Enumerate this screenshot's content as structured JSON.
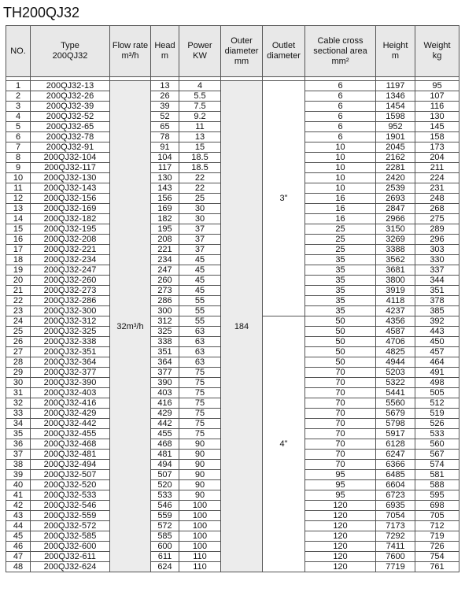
{
  "title": "TH200QJ32",
  "headers": {
    "no": "NO.",
    "type_line1": "Type",
    "type_line2": "200QJ32",
    "flow_line1": "Flow rate",
    "flow_line2": "m³/h",
    "head_line1": "Head",
    "head_line2": "m",
    "power_line1": "Power",
    "power_line2": "KW",
    "od_line1": "Outer",
    "od_line2": "diameter",
    "od_line3": "mm",
    "outlet_line1": "Outlet",
    "outlet_line2": "diameter",
    "cable_line1": "Cable cross",
    "cable_line2": "sectional area",
    "cable_line3": "mm²",
    "height_line1": "Height",
    "height_line2": "m",
    "weight_line1": "Weight",
    "weight_line2": "kg"
  },
  "merged": {
    "flow_rate": "32m³/h",
    "outer_diameter": "184",
    "outlet_3": "3\"",
    "outlet_4": "4\""
  },
  "rows": [
    {
      "no": "1",
      "type": "200QJ32-13",
      "head": "13",
      "power": "4",
      "cable": "6",
      "height": "1197",
      "weight": "95"
    },
    {
      "no": "2",
      "type": "200QJ32-26",
      "head": "26",
      "power": "5.5",
      "cable": "6",
      "height": "1346",
      "weight": "107"
    },
    {
      "no": "3",
      "type": "200QJ32-39",
      "head": "39",
      "power": "7.5",
      "cable": "6",
      "height": "1454",
      "weight": "116"
    },
    {
      "no": "4",
      "type": "200QJ32-52",
      "head": "52",
      "power": "9.2",
      "cable": "6",
      "height": "1598",
      "weight": "130"
    },
    {
      "no": "5",
      "type": "200QJ32-65",
      "head": "65",
      "power": "11",
      "cable": "6",
      "height": "952",
      "weight": "145"
    },
    {
      "no": "6",
      "type": "200QJ32-78",
      "head": "78",
      "power": "13",
      "cable": "6",
      "height": "1901",
      "weight": "158"
    },
    {
      "no": "7",
      "type": "200QJ32-91",
      "head": "91",
      "power": "15",
      "cable": "10",
      "height": "2045",
      "weight": "173"
    },
    {
      "no": "8",
      "type": "200QJ32-104",
      "head": "104",
      "power": "18.5",
      "cable": "10",
      "height": "2162",
      "weight": "204"
    },
    {
      "no": "9",
      "type": "200QJ32-117",
      "head": "117",
      "power": "18.5",
      "cable": "10",
      "height": "2281",
      "weight": "211"
    },
    {
      "no": "10",
      "type": "200QJ32-130",
      "head": "130",
      "power": "22",
      "cable": "10",
      "height": "2420",
      "weight": "224"
    },
    {
      "no": "11",
      "type": "200QJ32-143",
      "head": "143",
      "power": "22",
      "cable": "10",
      "height": "2539",
      "weight": "231"
    },
    {
      "no": "12",
      "type": "200QJ32-156",
      "head": "156",
      "power": "25",
      "cable": "16",
      "height": "2693",
      "weight": "248"
    },
    {
      "no": "13",
      "type": "200QJ32-169",
      "head": "169",
      "power": "30",
      "cable": "16",
      "height": "2847",
      "weight": "268"
    },
    {
      "no": "14",
      "type": "200QJ32-182",
      "head": "182",
      "power": "30",
      "cable": "16",
      "height": "2966",
      "weight": "275"
    },
    {
      "no": "15",
      "type": "200QJ32-195",
      "head": "195",
      "power": "37",
      "cable": "25",
      "height": "3150",
      "weight": "289"
    },
    {
      "no": "16",
      "type": "200QJ32-208",
      "head": "208",
      "power": "37",
      "cable": "25",
      "height": "3269",
      "weight": "296"
    },
    {
      "no": "17",
      "type": "200QJ32-221",
      "head": "221",
      "power": "37",
      "cable": "25",
      "height": "3388",
      "weight": "303"
    },
    {
      "no": "18",
      "type": "200QJ32-234",
      "head": "234",
      "power": "45",
      "cable": "35",
      "height": "3562",
      "weight": "330"
    },
    {
      "no": "19",
      "type": "200QJ32-247",
      "head": "247",
      "power": "45",
      "cable": "35",
      "height": "3681",
      "weight": "337"
    },
    {
      "no": "20",
      "type": "200QJ32-260",
      "head": "260",
      "power": "45",
      "cable": "35",
      "height": "3800",
      "weight": "344"
    },
    {
      "no": "21",
      "type": "200QJ32-273",
      "head": "273",
      "power": "45",
      "cable": "35",
      "height": "3919",
      "weight": "351"
    },
    {
      "no": "22",
      "type": "200QJ32-286",
      "head": "286",
      "power": "55",
      "cable": "35",
      "height": "4118",
      "weight": "378"
    },
    {
      "no": "23",
      "type": "200QJ32-300",
      "head": "300",
      "power": "55",
      "cable": "35",
      "height": "4237",
      "weight": "385"
    },
    {
      "no": "24",
      "type": "200QJ32-312",
      "head": "312",
      "power": "55",
      "cable": "50",
      "height": "4356",
      "weight": "392"
    },
    {
      "no": "25",
      "type": "200QJ32-325",
      "head": "325",
      "power": "63",
      "cable": "50",
      "height": "4587",
      "weight": "443"
    },
    {
      "no": "26",
      "type": "200QJ32-338",
      "head": "338",
      "power": "63",
      "cable": "50",
      "height": "4706",
      "weight": "450"
    },
    {
      "no": "27",
      "type": "200QJ32-351",
      "head": "351",
      "power": "63",
      "cable": "50",
      "height": "4825",
      "weight": "457"
    },
    {
      "no": "28",
      "type": "200QJ32-364",
      "head": "364",
      "power": "63",
      "cable": "50",
      "height": "4944",
      "weight": "464"
    },
    {
      "no": "29",
      "type": "200QJ32-377",
      "head": "377",
      "power": "75",
      "cable": "70",
      "height": "5203",
      "weight": "491"
    },
    {
      "no": "30",
      "type": "200QJ32-390",
      "head": "390",
      "power": "75",
      "cable": "70",
      "height": "5322",
      "weight": "498"
    },
    {
      "no": "31",
      "type": "200QJ32-403",
      "head": "403",
      "power": "75",
      "cable": "70",
      "height": "5441",
      "weight": "505"
    },
    {
      "no": "32",
      "type": "200QJ32-416",
      "head": "416",
      "power": "75",
      "cable": "70",
      "height": "5560",
      "weight": "512"
    },
    {
      "no": "33",
      "type": "200QJ32-429",
      "head": "429",
      "power": "75",
      "cable": "70",
      "height": "5679",
      "weight": "519"
    },
    {
      "no": "34",
      "type": "200QJ32-442",
      "head": "442",
      "power": "75",
      "cable": "70",
      "height": "5798",
      "weight": "526"
    },
    {
      "no": "35",
      "type": "200QJ32-455",
      "head": "455",
      "power": "75",
      "cable": "70",
      "height": "5917",
      "weight": "533"
    },
    {
      "no": "36",
      "type": "200QJ32-468",
      "head": "468",
      "power": "90",
      "cable": "70",
      "height": "6128",
      "weight": "560"
    },
    {
      "no": "37",
      "type": "200QJ32-481",
      "head": "481",
      "power": "90",
      "cable": "70",
      "height": "6247",
      "weight": "567"
    },
    {
      "no": "38",
      "type": "200QJ32-494",
      "head": "494",
      "power": "90",
      "cable": "70",
      "height": "6366",
      "weight": "574"
    },
    {
      "no": "39",
      "type": "200QJ32-507",
      "head": "507",
      "power": "90",
      "cable": "95",
      "height": "6485",
      "weight": "581"
    },
    {
      "no": "40",
      "type": "200QJ32-520",
      "head": "520",
      "power": "90",
      "cable": "95",
      "height": "6604",
      "weight": "588"
    },
    {
      "no": "41",
      "type": "200QJ32-533",
      "head": "533",
      "power": "90",
      "cable": "95",
      "height": "6723",
      "weight": "595"
    },
    {
      "no": "42",
      "type": "200QJ32-546",
      "head": "546",
      "power": "100",
      "cable": "120",
      "height": "6935",
      "weight": "698"
    },
    {
      "no": "43",
      "type": "200QJ32-559",
      "head": "559",
      "power": "100",
      "cable": "120",
      "height": "7054",
      "weight": "705"
    },
    {
      "no": "44",
      "type": "200QJ32-572",
      "head": "572",
      "power": "100",
      "cable": "120",
      "height": "7173",
      "weight": "712"
    },
    {
      "no": "45",
      "type": "200QJ32-585",
      "head": "585",
      "power": "100",
      "cable": "120",
      "height": "7292",
      "weight": "719"
    },
    {
      "no": "46",
      "type": "200QJ32-600",
      "head": "600",
      "power": "100",
      "cable": "120",
      "height": "7411",
      "weight": "726"
    },
    {
      "no": "47",
      "type": "200QJ32-611",
      "head": "611",
      "power": "110",
      "cable": "120",
      "height": "7600",
      "weight": "754"
    },
    {
      "no": "48",
      "type": "200QJ32-624",
      "head": "624",
      "power": "110",
      "cable": "120",
      "height": "7719",
      "weight": "761"
    }
  ]
}
